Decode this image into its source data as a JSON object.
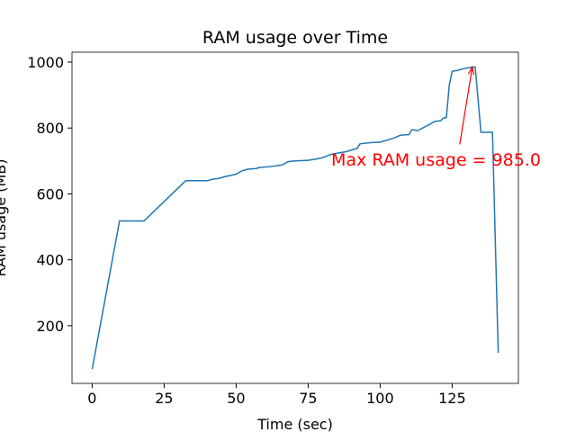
{
  "chart_data": {
    "type": "line",
    "title": "RAM usage over Time",
    "x_label": "Time (sec)",
    "y_label": "RAM usage (MB)",
    "x": [
      0,
      9.5,
      18,
      32.5,
      40,
      42,
      44,
      46,
      50,
      52,
      54,
      57,
      58,
      62,
      66,
      68,
      70,
      75,
      78,
      80,
      83,
      88,
      92,
      93,
      97,
      100,
      105,
      107,
      110,
      111,
      113,
      117,
      119,
      121,
      122,
      123,
      124,
      125,
      127,
      129,
      132,
      133,
      135,
      139,
      141
    ],
    "series": [
      {
        "name": "RAM usage",
        "color": "#1f77b4",
        "values": [
          68,
          518,
          518,
          640,
          640,
          645,
          647,
          652,
          660,
          670,
          675,
          677,
          680,
          683,
          688,
          698,
          700,
          702,
          706,
          710,
          720,
          728,
          738,
          752,
          756,
          757,
          770,
          778,
          780,
          795,
          792,
          810,
          820,
          822,
          830,
          832,
          930,
          972,
          975,
          980,
          985,
          985,
          787,
          787,
          118
        ]
      }
    ],
    "xlim": [
      -7,
      148
    ],
    "xticks": [
      0,
      25,
      50,
      75,
      100,
      125
    ],
    "ylim": [
      25,
      1030
    ],
    "yticks": [
      200,
      400,
      600,
      800,
      1000
    ],
    "annotation": {
      "text": "Max RAM usage = 985.0",
      "x": 132,
      "y": 985,
      "color": "red"
    }
  }
}
